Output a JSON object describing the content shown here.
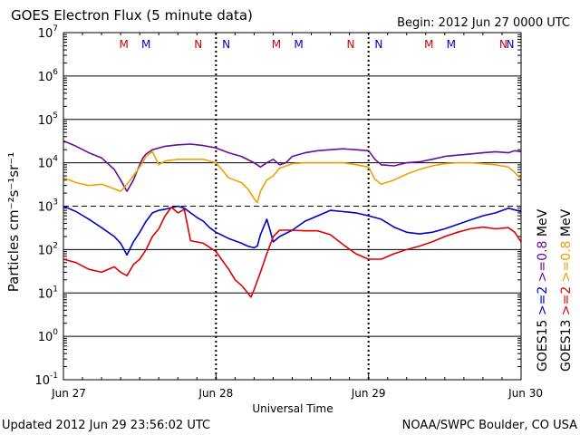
{
  "chart_data": {
    "type": "line",
    "title": "GOES Electron Flux (5 minute data)",
    "begin_label": "Begin: 2012 Jun 27 0000 UTC",
    "xlabel": "Universal Time",
    "ylabel": "Particles cm⁻²s⁻¹sr⁻¹",
    "y_scale": "log",
    "ylim": [
      0.1,
      10000000
    ],
    "y_ticks": [
      {
        "value": 10000000,
        "base": "10",
        "exp": "7"
      },
      {
        "value": 1000000,
        "base": "10",
        "exp": "6"
      },
      {
        "value": 100000,
        "base": "10",
        "exp": "5"
      },
      {
        "value": 10000,
        "base": "10",
        "exp": "4"
      },
      {
        "value": 1000,
        "base": "10",
        "exp": "3"
      },
      {
        "value": 100,
        "base": "10",
        "exp": "2"
      },
      {
        "value": 10,
        "base": "10",
        "exp": "1"
      },
      {
        "value": 1,
        "base": "10",
        "exp": "0"
      },
      {
        "value": 0.1,
        "base": "10",
        "exp": "-1"
      }
    ],
    "xlim": [
      0,
      72
    ],
    "x_unit": "hours since 2012 Jun 27 0000 UTC",
    "x_ticks": [
      {
        "value": 0,
        "label": "Jun 27"
      },
      {
        "value": 24,
        "label": "Jun 28"
      },
      {
        "value": 48,
        "label": "Jun 29"
      },
      {
        "value": 72,
        "label": "Jun 30"
      }
    ],
    "day_dividers": [
      24,
      48
    ],
    "threshold": {
      "value": 1000,
      "style": "dashed"
    },
    "markers": [
      {
        "x": 9.5,
        "label": "M",
        "color": "#d00000"
      },
      {
        "x": 13.0,
        "label": "M",
        "color": "#0000c8"
      },
      {
        "x": 21.2,
        "label": "N",
        "color": "#d00000"
      },
      {
        "x": 25.6,
        "label": "N",
        "color": "#0000c8"
      },
      {
        "x": 33.5,
        "label": "M",
        "color": "#d00000"
      },
      {
        "x": 37.0,
        "label": "M",
        "color": "#0000c8"
      },
      {
        "x": 45.2,
        "label": "N",
        "color": "#d00000"
      },
      {
        "x": 49.6,
        "label": "N",
        "color": "#0000c8"
      },
      {
        "x": 57.5,
        "label": "M",
        "color": "#d00000"
      },
      {
        "x": 61.0,
        "label": "M",
        "color": "#0000c8"
      },
      {
        "x": 69.2,
        "label": "N",
        "color": "#d00000"
      },
      {
        "x": 73.6,
        "label": "N",
        "color": "#0000c8"
      }
    ],
    "legend": {
      "placement": "right",
      "columns": [
        {
          "satellite": "GOES15",
          "color": "#000000",
          "entries": [
            {
              "label": ">=2",
              "color": "#0000c8"
            },
            {
              "label": ">=0.8",
              "color": "#6a0aa0"
            }
          ],
          "unit": "MeV"
        },
        {
          "satellite": "GOES13",
          "color": "#000000",
          "entries": [
            {
              "label": ">=2",
              "color": "#dd0000"
            },
            {
              "label": ">=0.8",
              "color": "#f0a000"
            }
          ],
          "unit": "MeV"
        }
      ]
    },
    "series": [
      {
        "name": "GOES15 >=0.8 MeV",
        "color": "#6a0aa0",
        "x": [
          0,
          2,
          4,
          6,
          8,
          9,
          10,
          11,
          12,
          12.5,
          13,
          14,
          16,
          18,
          20,
          22,
          24,
          26,
          28,
          30,
          31,
          32,
          33,
          34,
          35,
          36,
          38,
          40,
          42,
          44,
          46,
          48,
          49,
          50,
          52,
          54,
          56,
          58,
          60,
          62,
          64,
          66,
          68,
          70,
          71,
          72
        ],
        "y": [
          32000,
          24000,
          17000,
          13000,
          7000,
          4000,
          2200,
          4000,
          9000,
          13000,
          16000,
          20000,
          24000,
          26000,
          27000,
          25000,
          22000,
          17000,
          14000,
          10000,
          8000,
          10000,
          12000,
          9000,
          10000,
          14000,
          17000,
          19000,
          20000,
          21000,
          20000,
          19000,
          12000,
          9000,
          8500,
          10000,
          10500,
          12000,
          14000,
          15000,
          16000,
          17000,
          18000,
          17000,
          19000,
          18000
        ]
      },
      {
        "name": "GOES13 >=0.8 MeV",
        "color": "#f0a000",
        "x": [
          0,
          2,
          4,
          6,
          8,
          9,
          10,
          11,
          12,
          13,
          14,
          15,
          16,
          18,
          20,
          22,
          24,
          26,
          28,
          29,
          30,
          30.5,
          31,
          32,
          33,
          34,
          36,
          38,
          40,
          42,
          44,
          46,
          48,
          49,
          50,
          52,
          54,
          56,
          58,
          60,
          62,
          64,
          66,
          68,
          70,
          71,
          72
        ],
        "y": [
          4500,
          3500,
          3000,
          3200,
          2500,
          2200,
          3200,
          5000,
          8000,
          14000,
          18000,
          9000,
          11000,
          12000,
          12000,
          12000,
          10000,
          4500,
          3500,
          2500,
          1500,
          1200,
          2200,
          4000,
          5000,
          7500,
          9500,
          10000,
          10000,
          10000,
          10000,
          9000,
          8000,
          4200,
          3200,
          4000,
          5500,
          7000,
          8500,
          9500,
          10000,
          10000,
          9500,
          9000,
          8000,
          6000,
          4200
        ]
      },
      {
        "name": "GOES15 >=2 MeV",
        "color": "#0000c8",
        "x": [
          0,
          2,
          4,
          6,
          8,
          9,
          10,
          11,
          12,
          13,
          14,
          15,
          16,
          18,
          19,
          20,
          21,
          22,
          23,
          24,
          26,
          28,
          29,
          30,
          30.5,
          31,
          32,
          32.5,
          33,
          34,
          36,
          38,
          40,
          42,
          44,
          46,
          48,
          50,
          52,
          54,
          56,
          58,
          60,
          62,
          64,
          66,
          68,
          70,
          72
        ],
        "y": [
          1000,
          750,
          500,
          320,
          200,
          140,
          75,
          150,
          250,
          450,
          700,
          800,
          850,
          1000,
          900,
          700,
          550,
          450,
          320,
          250,
          180,
          140,
          120,
          110,
          120,
          220,
          500,
          280,
          150,
          200,
          280,
          450,
          600,
          800,
          750,
          700,
          600,
          500,
          330,
          250,
          230,
          250,
          300,
          380,
          480,
          600,
          700,
          900,
          750
        ]
      },
      {
        "name": "GOES13 >=2 MeV",
        "color": "#dd0000",
        "x": [
          0,
          2,
          4,
          6,
          8,
          9,
          10,
          11,
          12,
          13,
          14,
          15,
          16,
          17,
          18,
          19,
          20,
          22,
          24,
          26,
          27,
          28,
          29,
          29.5,
          30,
          31,
          32,
          33,
          34,
          36,
          38,
          40,
          42,
          44,
          46,
          48,
          50,
          52,
          54,
          56,
          58,
          60,
          62,
          64,
          66,
          68,
          70,
          71,
          72
        ],
        "y": [
          60,
          50,
          35,
          30,
          40,
          30,
          25,
          45,
          60,
          100,
          200,
          300,
          600,
          950,
          700,
          850,
          160,
          140,
          90,
          35,
          20,
          15,
          10,
          8,
          12,
          30,
          80,
          200,
          280,
          280,
          270,
          270,
          220,
          130,
          80,
          60,
          60,
          80,
          100,
          120,
          150,
          200,
          250,
          300,
          330,
          300,
          320,
          250,
          150
        ]
      }
    ]
  },
  "footer": {
    "updated": "Updated 2012 Jun 29 23:56:02 UTC",
    "credit": "NOAA/SWPC Boulder, CO USA"
  },
  "colors": {
    "dashed_line": "#000000",
    "axis": "#000000",
    "background": "#ffffff"
  }
}
